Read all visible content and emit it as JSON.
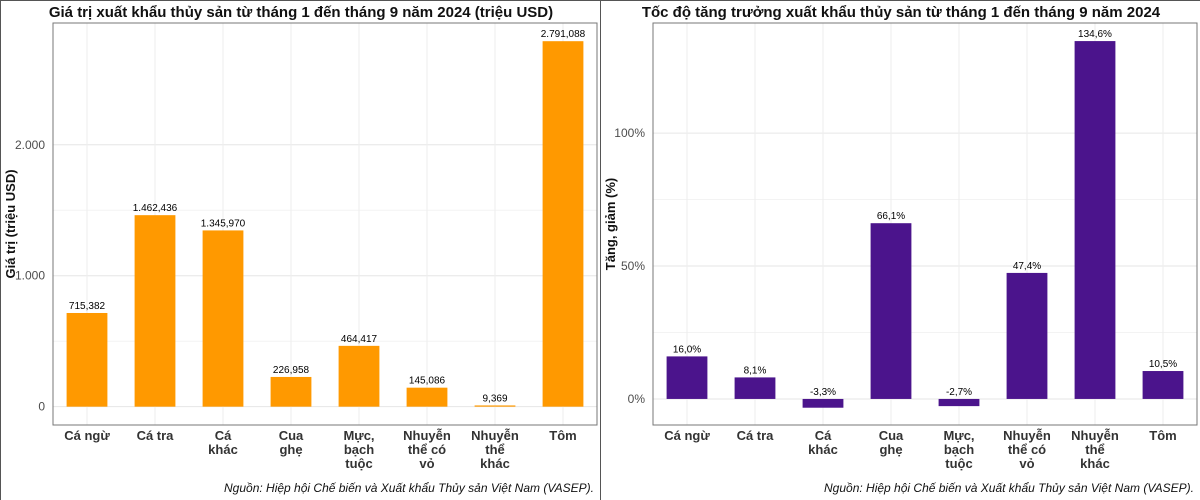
{
  "chart_data": [
    {
      "type": "bar",
      "title": "Giá trị xuất khẩu thủy sản từ tháng 1 đến tháng 9 năm 2024 (triệu USD)",
      "y_label": "Giá trị (triệu USD)",
      "categories": [
        "Cá ngừ",
        "Cá tra",
        "Cá khác",
        "Cua ghẹ",
        "Mực, bạch tuộc",
        "Nhuyễn thể có vỏ",
        "Nhuyễn thể khác",
        "Tôm"
      ],
      "values": [
        715.382,
        1462.436,
        1345.97,
        226.958,
        464.417,
        145.086,
        9.369,
        2791.088
      ],
      "value_labels": [
        "715,382",
        "1.462,436",
        "1.345,970",
        "226,958",
        "464,417",
        "145,086",
        "9,369",
        "2.791,088"
      ],
      "color": "#ff9900",
      "ylim": [
        -140,
        2930
      ],
      "yticks": [
        0,
        {
          "value": 1000,
          "label": "1.000"
        },
        {
          "value": 2000,
          "label": "2.000"
        }
      ],
      "grid": true,
      "source": "Nguồn: Hiệp hội Chế biến và Xuất khẩu Thủy sản Việt Nam (VASEP)."
    },
    {
      "type": "bar",
      "title": "Tốc độ tăng trưởng xuất khẩu thủy sản từ tháng 1 đến tháng 9 năm 2024",
      "y_label": "Tăng, giảm (%)",
      "categories": [
        "Cá ngừ",
        "Cá tra",
        "Cá khác",
        "Cua ghẹ",
        "Mực, bạch tuộc",
        "Nhuyễn thể có vỏ",
        "Nhuyễn thể khác",
        "Tôm"
      ],
      "values": [
        16.0,
        8.1,
        -3.3,
        66.1,
        -2.7,
        47.4,
        134.6,
        10.5
      ],
      "value_labels": [
        "16,0%",
        "8,1%",
        "-3,3%",
        "66,1%",
        "-2,7%",
        "47,4%",
        "134,6%",
        "10,5%"
      ],
      "color": "#4b148c",
      "ylim": [
        -9.8,
        141.4
      ],
      "yticks": [
        {
          "value": 0,
          "label": "0%"
        },
        {
          "value": 50,
          "label": "50%"
        },
        {
          "value": 100,
          "label": "100%"
        }
      ],
      "grid": true,
      "source": "Nguồn: Hiệp hội Chế biến và Xuất khẩu Thủy sản Việt Nam (VASEP)."
    }
  ]
}
